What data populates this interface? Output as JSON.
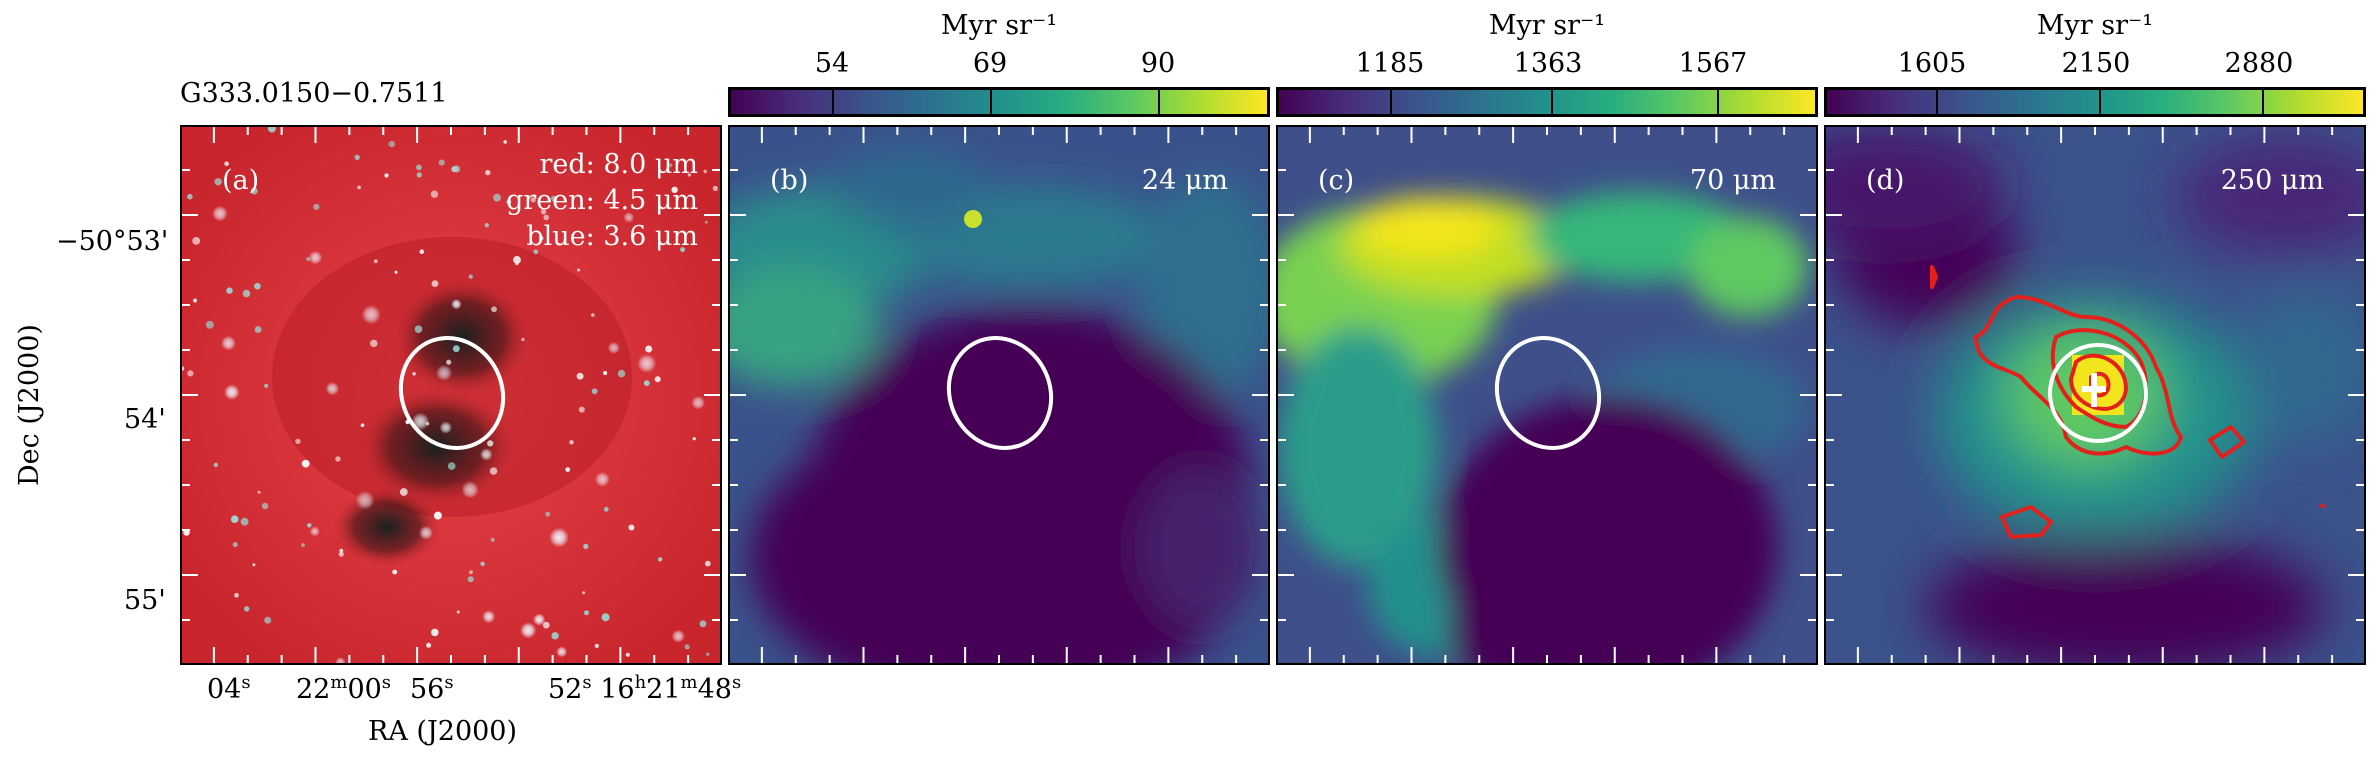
{
  "source_name": "G333.0150−0.7511",
  "axes": {
    "xlabel": "RA (J2000)",
    "ylabel": "Dec (J2000)",
    "dec_ticks": [
      "−50°53'",
      "54'",
      "55'"
    ],
    "ra_ticks": [
      {
        "val": "04",
        "sup": "s"
      },
      {
        "val": "22",
        "sup": "m",
        "val2": "00",
        "sup2": "s"
      },
      {
        "val": "56",
        "sup": "s"
      },
      {
        "val": "52",
        "sup": "s",
        "val2": "16",
        "sup2": "h",
        "val3": "21",
        "sup3": "m",
        "val4": "48",
        "sup4": "s"
      }
    ]
  },
  "panels": [
    {
      "id": "a",
      "label": "(a)",
      "rgb": [
        "red: 8.0 μm",
        "green: 4.5 μm",
        "blue: 3.6 μm"
      ]
    },
    {
      "id": "b",
      "label": "(b)",
      "wavelength": "24 μm",
      "colorbar": {
        "title": "Myr sr⁻¹",
        "ticks": [
          "54",
          "69",
          "90"
        ]
      }
    },
    {
      "id": "c",
      "label": "(c)",
      "wavelength": "70 μm",
      "colorbar": {
        "title": "Myr sr⁻¹",
        "ticks": [
          "1185",
          "1363",
          "1567"
        ]
      }
    },
    {
      "id": "d",
      "label": "(d)",
      "wavelength": "250 μm",
      "colorbar": {
        "title": "Myr sr⁻¹",
        "ticks": [
          "1605",
          "2150",
          "2880"
        ]
      }
    }
  ],
  "colors": {
    "viridis_low": "#440154",
    "viridis_high": "#fde725",
    "contour": "#e3211c",
    "ellipse": "#ffffff",
    "ir_red": "#d4242a"
  }
}
